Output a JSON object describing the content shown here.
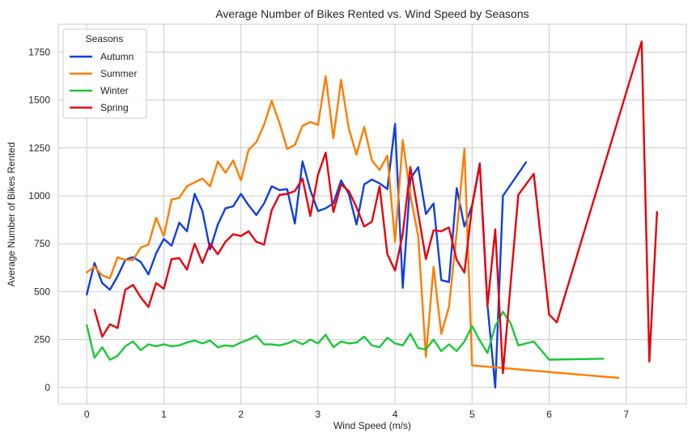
{
  "chart_data": {
    "type": "line",
    "title": "Average Number of Bikes Rented vs. Wind Speed by Seasons",
    "xlabel": "Wind Speed (m/s)",
    "ylabel": "Average Number of Bikes Rented",
    "xlim": [
      -0.37,
      7.78
    ],
    "ylim": [
      -85,
      1895
    ],
    "xticks": [
      0,
      1,
      2,
      3,
      4,
      5,
      6,
      7
    ],
    "yticks": [
      0,
      250,
      500,
      750,
      1000,
      1250,
      1500,
      1750
    ],
    "grid": true,
    "legend": {
      "title": "Seasons",
      "placement": "top-left"
    },
    "series": [
      {
        "name": "Autumn",
        "color": "#0f3fe3",
        "x": [
          0,
          0.1,
          0.2,
          0.3,
          0.4,
          0.5,
          0.6,
          0.7,
          0.8,
          0.9,
          1.0,
          1.1,
          1.2,
          1.3,
          1.4,
          1.5,
          1.6,
          1.7,
          1.8,
          1.9,
          2.0,
          2.1,
          2.2,
          2.3,
          2.4,
          2.5,
          2.6,
          2.7,
          2.8,
          2.9,
          3.0,
          3.1,
          3.2,
          3.3,
          3.4,
          3.5,
          3.6,
          3.7,
          3.8,
          3.9,
          4.0,
          4.1,
          4.2,
          4.3,
          4.4,
          4.5,
          4.6,
          4.7,
          4.8,
          4.9,
          5.0,
          5.1,
          5.2,
          5.3,
          5.4,
          5.7
        ],
        "y": [
          485,
          650,
          545,
          510,
          580,
          665,
          680,
          655,
          590,
          700,
          775,
          740,
          860,
          815,
          1010,
          920,
          720,
          850,
          935,
          945,
          1010,
          950,
          900,
          960,
          1050,
          1030,
          1035,
          855,
          1180,
          1030,
          920,
          935,
          960,
          1080,
          1010,
          850,
          1060,
          1085,
          1065,
          1035,
          1375,
          520,
          1090,
          1150,
          905,
          960,
          560,
          550,
          1040,
          840,
          950,
          1170,
          430,
          0,
          1000,
          1175
        ]
      },
      {
        "name": "Summer",
        "color": "#ff7c00",
        "x": [
          0,
          0.1,
          0.2,
          0.3,
          0.4,
          0.5,
          0.6,
          0.7,
          0.8,
          0.9,
          1.0,
          1.1,
          1.2,
          1.3,
          1.4,
          1.5,
          1.6,
          1.7,
          1.8,
          1.9,
          2.0,
          2.1,
          2.2,
          2.3,
          2.4,
          2.5,
          2.6,
          2.7,
          2.8,
          2.9,
          3.0,
          3.1,
          3.2,
          3.3,
          3.4,
          3.5,
          3.6,
          3.7,
          3.8,
          3.9,
          4.0,
          4.1,
          4.2,
          4.3,
          4.4,
          4.5,
          4.6,
          4.7,
          4.8,
          4.9,
          5.0,
          6.9
        ],
        "y": [
          600,
          630,
          585,
          570,
          680,
          665,
          665,
          730,
          745,
          885,
          790,
          980,
          990,
          1050,
          1070,
          1090,
          1050,
          1180,
          1120,
          1185,
          1080,
          1240,
          1280,
          1370,
          1495,
          1380,
          1245,
          1265,
          1365,
          1385,
          1370,
          1625,
          1300,
          1605,
          1350,
          1215,
          1360,
          1185,
          1135,
          1210,
          760,
          1290,
          1000,
          790,
          160,
          630,
          280,
          420,
          810,
          1245,
          115,
          50
        ]
      },
      {
        "name": "Winter",
        "color": "#1ac938",
        "x": [
          0,
          0.1,
          0.2,
          0.3,
          0.4,
          0.5,
          0.6,
          0.7,
          0.8,
          0.9,
          1.0,
          1.1,
          1.2,
          1.3,
          1.4,
          1.5,
          1.6,
          1.7,
          1.8,
          1.9,
          2.0,
          2.1,
          2.2,
          2.3,
          2.4,
          2.5,
          2.6,
          2.7,
          2.8,
          2.9,
          3.0,
          3.1,
          3.2,
          3.3,
          3.4,
          3.5,
          3.6,
          3.7,
          3.8,
          3.9,
          4.0,
          4.1,
          4.2,
          4.3,
          4.4,
          4.5,
          4.6,
          4.7,
          4.8,
          4.9,
          5.0,
          5.1,
          5.2,
          5.3,
          5.4,
          5.5,
          5.6,
          5.8,
          6.0,
          6.7
        ],
        "y": [
          325,
          155,
          210,
          145,
          165,
          215,
          240,
          195,
          225,
          215,
          225,
          215,
          220,
          235,
          245,
          230,
          245,
          210,
          220,
          215,
          235,
          250,
          270,
          225,
          225,
          220,
          230,
          245,
          225,
          250,
          230,
          275,
          210,
          240,
          230,
          235,
          265,
          220,
          210,
          260,
          230,
          220,
          280,
          205,
          200,
          250,
          190,
          225,
          190,
          240,
          320,
          245,
          180,
          320,
          395,
          335,
          220,
          240,
          145,
          150
        ]
      },
      {
        "name": "Spring",
        "color": "#e8000b",
        "x": [
          0.1,
          0.2,
          0.3,
          0.4,
          0.5,
          0.6,
          0.7,
          0.8,
          0.9,
          1.0,
          1.1,
          1.2,
          1.3,
          1.4,
          1.5,
          1.6,
          1.7,
          1.8,
          1.9,
          2.0,
          2.1,
          2.2,
          2.3,
          2.4,
          2.5,
          2.6,
          2.7,
          2.8,
          2.9,
          3.0,
          3.1,
          3.2,
          3.3,
          3.4,
          3.5,
          3.6,
          3.7,
          3.8,
          3.9,
          4.0,
          4.1,
          4.2,
          4.3,
          4.4,
          4.5,
          4.6,
          4.7,
          4.8,
          4.9,
          5.0,
          5.1,
          5.2,
          5.3,
          5.4,
          5.6,
          5.8,
          6.0,
          6.1,
          7.2,
          7.3,
          7.4
        ],
        "y": [
          405,
          265,
          330,
          310,
          510,
          535,
          470,
          420,
          545,
          515,
          670,
          675,
          615,
          750,
          650,
          750,
          695,
          760,
          800,
          790,
          815,
          760,
          745,
          925,
          1005,
          1010,
          1025,
          1090,
          895,
          1110,
          1225,
          915,
          1060,
          1025,
          940,
          840,
          865,
          1050,
          695,
          610,
          800,
          1150,
          910,
          670,
          820,
          815,
          835,
          665,
          600,
          945,
          1165,
          425,
          825,
          75,
          1005,
          1115,
          380,
          340,
          1805,
          135,
          915
        ]
      }
    ]
  }
}
